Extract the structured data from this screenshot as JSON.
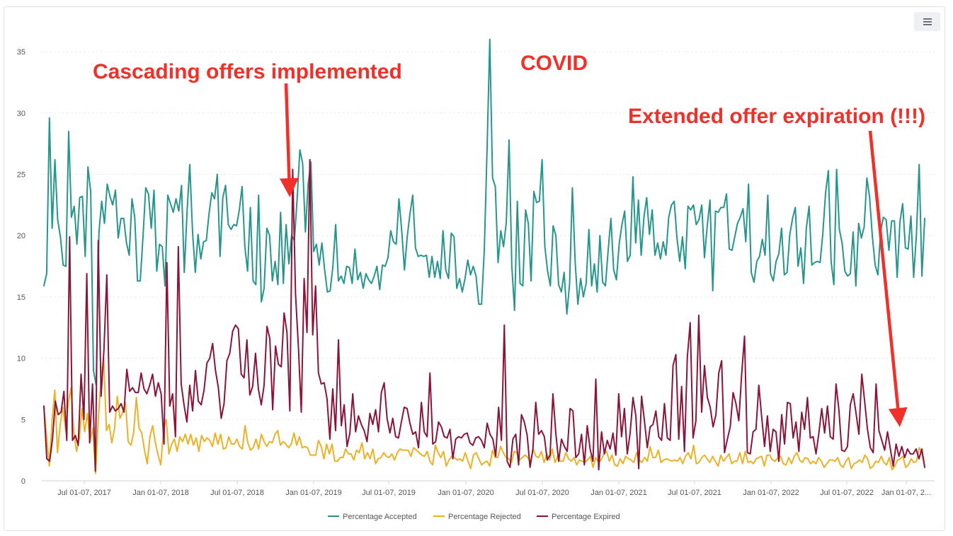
{
  "menu": {
    "icon": "hamburger-menu-icon"
  },
  "chart_data": {
    "type": "line",
    "title": "",
    "xlabel": "",
    "ylabel": "",
    "ylim": [
      0,
      37
    ],
    "y_ticks": [
      0,
      5,
      10,
      15,
      20,
      25,
      30,
      35
    ],
    "x_tick_labels": [
      "Jul 01-07, 2017",
      "Jan 01-07, 2018",
      "Jul 01-07, 2018",
      "Jan 01-07, 2019",
      "Jul 01-07, 2019",
      "Jan 01-07, 2020",
      "Jul 01-07, 2020",
      "Jan 01-07, 2021",
      "Jul 01-07, 2021",
      "Jan 01-07, 2022",
      "Jul 01-07, 2022",
      "Jan 01-07, 2..."
    ],
    "grid": true,
    "legend_position": "bottom-center",
    "series": [
      {
        "name": "Percentage Accepted",
        "color": "#26968d",
        "values": [
          15.9,
          16.9,
          29.6,
          20.6,
          26.2,
          21.3,
          19.9,
          17.6,
          17.5,
          28.5,
          21.5,
          22.4,
          19.3,
          23.1,
          23.2,
          18.3,
          25.6,
          23.6,
          9.0,
          7.8,
          20.3,
          22.8,
          21.0,
          24.2,
          23.2,
          22.5,
          23.7,
          19.8,
          21.4,
          21.4,
          19.4,
          18.4,
          23.0,
          21.5,
          16.3,
          16.3,
          19.9,
          23.9,
          23.4,
          20.6,
          23.7,
          17.1,
          19.3,
          19.1,
          15.9,
          23.3,
          22.6,
          21.9,
          23.0,
          22.0,
          24.1,
          17.0,
          21.9,
          25.8,
          20.3,
          17.0,
          20.1,
          18.1,
          19.5,
          19.6,
          21.8,
          23.5,
          23.0,
          25.0,
          18.3,
          23.1,
          24.1,
          20.9,
          20.5,
          20.9,
          20.8,
          22.1,
          24.0,
          19.1,
          17.1,
          22.3,
          16.3,
          16.0,
          23.3,
          14.6,
          15.7,
          20.6,
          20.0,
          16.3,
          17.9,
          16.0,
          21.9,
          16.1,
          20.9,
          17.7,
          20.0,
          19.6,
          23.0,
          27.0,
          25.9,
          20.3,
          24.2,
          26.0,
          18.7,
          19.3,
          17.6,
          19.4,
          17.2,
          15.4,
          15.5,
          17.5,
          20.9,
          16.3,
          16.7,
          16.1,
          17.5,
          17.4,
          16.1,
          18.9,
          16.4,
          17.0,
          15.7,
          16.9,
          16.4,
          16.1,
          16.7,
          17.5,
          15.6,
          17.6,
          17.5,
          18.2,
          20.4,
          19.5,
          19.3,
          23.0,
          20.4,
          17.2,
          19.9,
          21.8,
          23.3,
          19.0,
          18.3,
          18.4,
          18.3,
          18.4,
          16.6,
          18.3,
          16.6,
          17.9,
          16.5,
          20.4,
          17.2,
          16.5,
          20.2,
          19.9,
          15.7,
          16.5,
          15.4,
          16.5,
          18.0,
          16.8,
          17.5,
          16.7,
          14.4,
          14.4,
          18.8,
          27.0,
          36.0,
          24.7,
          24.0,
          17.8,
          20.4,
          19.1,
          21.1,
          27.8,
          17.5,
          13.9,
          22.8,
          16.1,
          15.9,
          22.1,
          21.0,
          16.3,
          23.6,
          22.7,
          22.8,
          26.2,
          19.1,
          17.1,
          15.9,
          20.8,
          20.0,
          16.0,
          15.4,
          17.0,
          13.6,
          16.1,
          23.9,
          17.9,
          14.4,
          16.5,
          15.0,
          16.1,
          20.5,
          15.9,
          17.7,
          15.4,
          20.0,
          16.2,
          15.9,
          18.8,
          21.4,
          17.2,
          16.4,
          19.3,
          20.9,
          22.0,
          17.9,
          18.4,
          24.8,
          19.4,
          22.9,
          18.4,
          21.5,
          23.1,
          20.1,
          22.1,
          18.4,
          19.4,
          18.1,
          19.5,
          18.4,
          21.5,
          22.5,
          22.8,
          19.8,
          17.9,
          19.9,
          17.3,
          22.4,
          22.1,
          22.5,
          20.9,
          21.3,
          22.5,
          18.2,
          20.8,
          22.9,
          15.5,
          22.0,
          21.9,
          22.3,
          22.3,
          23.4,
          18.9,
          18.8,
          19.9,
          21.0,
          21.5,
          22.2,
          19.5,
          24.2,
          17.0,
          16.2,
          17.9,
          18.3,
          19.7,
          18.4,
          23.3,
          16.9,
          16.3,
          17.9,
          18.5,
          20.6,
          16.8,
          17.0,
          20.1,
          21.4,
          22.3,
          17.5,
          19.0,
          16.1,
          20.6,
          22.4,
          17.6,
          17.8,
          17.9,
          17.8,
          20.2,
          23.5,
          25.3,
          17.9,
          16.0,
          25.4,
          20.5,
          19.4,
          17.1,
          16.7,
          16.9,
          20.3,
          15.9,
          21.0,
          19.8,
          20.7,
          24.7,
          23.1,
          19.9,
          17.6,
          16.8,
          20.4,
          21.5,
          21.3,
          18.8,
          21.2,
          21.2,
          16.6,
          21.1,
          22.6,
          19.0,
          18.9,
          21.6,
          16.6,
          20.1,
          25.8,
          16.7,
          21.4
        ]
      },
      {
        "name": "Percentage Rejected",
        "color": "#edb128",
        "values": [
          6.0,
          3.6,
          1.2,
          4.9,
          7.4,
          2.3,
          4.6,
          6.0,
          4.1,
          6.4,
          7.6,
          4.0,
          2.4,
          3.4,
          5.9,
          4.0,
          5.5,
          3.2,
          4.3,
          0.6,
          5.0,
          8.3,
          10.0,
          4.1,
          4.6,
          3.1,
          4.3,
          6.9,
          5.1,
          5.6,
          6.4,
          3.2,
          2.9,
          3.9,
          6.8,
          4.3,
          3.9,
          2.5,
          1.4,
          3.6,
          4.5,
          3.1,
          2.1,
          1.3,
          4.2,
          5.0,
          2.2,
          3.0,
          3.4,
          2.4,
          3.6,
          3.2,
          3.8,
          3.0,
          3.8,
          2.9,
          3.5,
          2.4,
          3.7,
          3.2,
          3.5,
          3.3,
          2.8,
          3.9,
          3.0,
          3.8,
          2.6,
          2.7,
          3.6,
          3.0,
          3.0,
          3.4,
          2.8,
          2.6,
          4.5,
          3.1,
          2.5,
          2.7,
          3.4,
          2.6,
          3.8,
          3.2,
          2.8,
          3.2,
          3.1,
          3.8,
          4.1,
          2.9,
          3.2,
          3.0,
          2.7,
          3.0,
          3.9,
          2.9,
          3.6,
          2.7,
          2.8,
          2.7,
          2.1,
          2.1,
          2.1,
          3.3,
          2.8,
          1.8,
          3.0,
          2.2,
          3.0,
          1.6,
          1.6,
          1.9,
          1.9,
          2.6,
          2.2,
          2.2,
          1.7,
          2.5,
          2.3,
          3.1,
          1.8,
          2.3,
          1.8,
          2.6,
          1.4,
          1.8,
          1.9,
          2.3,
          2.0,
          1.9,
          2.2,
          1.7,
          2.3,
          2.6,
          2.5,
          2.5,
          2.5,
          2.0,
          2.7,
          2.5,
          2.3,
          2.1,
          2.0,
          2.4,
          1.6,
          1.3,
          2.9,
          2.3,
          1.9,
          2.4,
          1.2,
          1.7,
          2.0,
          1.9,
          1.7,
          1.8,
          1.6,
          2.3,
          1.6,
          1.0,
          2.1,
          2.3,
          1.8,
          1.3,
          1.5,
          1.6,
          1.2,
          2.5,
          1.9,
          1.9,
          2.8,
          2.3,
          1.9,
          1.8,
          1.5,
          2.4,
          2.3,
          1.7,
          1.9,
          2.1,
          1.9,
          1.5,
          2.6,
          2.0,
          1.9,
          2.4,
          1.5,
          2.2,
          1.7,
          2.6,
          1.5,
          2.0,
          1.6,
          1.6,
          2.3,
          1.8,
          1.6,
          1.9,
          1.3,
          1.7,
          1.6,
          1.5,
          1.7,
          2.0,
          1.1,
          1.9,
          1.5,
          1.7,
          2.2,
          2.4,
          1.6,
          2.1,
          1.3,
          1.2,
          1.8,
          1.4,
          2.0,
          1.8,
          1.7,
          1.5,
          2.3,
          1.7,
          1.5,
          1.9,
          1.6,
          2.8,
          1.9,
          1.9,
          2.5,
          1.5,
          1.7,
          1.8,
          1.7,
          1.6,
          1.7,
          1.6,
          1.9,
          1.4,
          2.0,
          2.3,
          1.8,
          2.9,
          1.4,
          1.5,
          1.9,
          2.1,
          1.8,
          1.5,
          2.0,
          1.6,
          1.2,
          2.1,
          1.6,
          1.9,
          2.2,
          1.4,
          1.6,
          1.6,
          2.3,
          1.4,
          2.4,
          1.5,
          1.6,
          1.4,
          1.8,
          1.9,
          2.0,
          1.2,
          2.1,
          2.1,
          1.7,
          1.6,
          1.9,
          2.0,
          1.4,
          1.3,
          1.9,
          1.4,
          2.0,
          2.3,
          1.7,
          1.5,
          1.9,
          1.8,
          1.4,
          1.6,
          1.4,
          1.9,
          1.6,
          1.1,
          1.4,
          1.7,
          1.7,
          1.6,
          1.9,
          1.3,
          1.1,
          1.6,
          1.9,
          1.0,
          1.4,
          1.5,
          1.7,
          1.5,
          2.1,
          1.8,
          1.0,
          1.2,
          1.6,
          1.5,
          2.0,
          1.5,
          1.3,
          1.9,
          0.9,
          1.2,
          1.7,
          1.8,
          2.0,
          1.1,
          1.3,
          1.8,
          1.5,
          1.6,
          2.7,
          2.2,
          1.2
        ]
      },
      {
        "name": "Percentage Expired",
        "color": "#8a1538",
        "values": [
          6.1,
          1.8,
          1.6,
          3.4,
          6.5,
          5.4,
          5.6,
          7.3,
          3.3,
          19.9,
          3.3,
          3.7,
          2.9,
          8.7,
          5.0,
          16.9,
          3.1,
          7.9,
          0.8,
          19.6,
          6.9,
          10.7,
          16.8,
          5.6,
          6.1,
          5.7,
          5.9,
          6.3,
          5.6,
          9.1,
          7.3,
          7.6,
          7.2,
          7.2,
          8.8,
          7.5,
          7.1,
          7.8,
          8.7,
          6.9,
          8.0,
          7.1,
          3.0,
          17.8,
          6.1,
          7.1,
          3.6,
          19.1,
          7.9,
          6.2,
          4.8,
          7.8,
          5.7,
          9.0,
          6.5,
          6.2,
          7.4,
          9.6,
          10.0,
          11.2,
          9.0,
          7.6,
          5.1,
          6.3,
          9.8,
          10.4,
          12.2,
          12.7,
          12.4,
          8.7,
          8.4,
          11.5,
          7.0,
          7.7,
          10.4,
          7.5,
          6.2,
          7.8,
          12.6,
          11.6,
          5.8,
          11.0,
          9.5,
          9.3,
          13.7,
          12.1,
          5.7,
          25.4,
          15.2,
          10.9,
          5.6,
          16.5,
          12.1,
          26.2,
          11.9,
          15.9,
          8.8,
          7.9,
          8.0,
          6.7,
          3.4,
          7.5,
          4.1,
          11.5,
          4.5,
          6.2,
          2.8,
          3.9,
          7.1,
          4.0,
          5.3,
          4.6,
          4.1,
          3.2,
          5.5,
          4.6,
          5.8,
          4.0,
          7.2,
          8.0,
          5.1,
          3.9,
          5.1,
          3.6,
          3.5,
          4.8,
          6.0,
          5.9,
          4.7,
          3.8,
          4.0,
          2.7,
          6.4,
          4.0,
          3.6,
          8.8,
          3.0,
          3.2,
          4.8,
          4.4,
          3.6,
          3.5,
          4.2,
          1.8,
          3.4,
          3.6,
          3.5,
          3.8,
          3.9,
          3.1,
          2.9,
          3.5,
          3.6,
          3.3,
          2.7,
          4.7,
          3.8,
          3.4,
          2.0,
          6.0,
          3.3,
          12.7,
          1.6,
          1.1,
          3.4,
          3.8,
          1.3,
          5.4,
          4.8,
          3.7,
          1.1,
          2.6,
          6.4,
          3.8,
          4.1,
          3.6,
          1.7,
          2.1,
          7.1,
          3.9,
          1.6,
          3.4,
          2.8,
          2.4,
          5.9,
          5.7,
          1.9,
          2.2,
          3.8,
          1.3,
          4.5,
          2.6,
          1.6,
          8.3,
          0.9,
          4.0,
          2.2,
          3.3,
          2.6,
          3.9,
          2.1,
          7.1,
          3.6,
          5.9,
          2.2,
          3.9,
          6.8,
          5.3,
          1.0,
          6.9,
          4.9,
          2.7,
          4.4,
          4.6,
          5.7,
          3.6,
          3.3,
          6.3,
          3.5,
          3.3,
          9.4,
          10.3,
          3.4,
          7.7,
          2.4,
          10.1,
          12.9,
          3.5,
          4.9,
          13.5,
          5.6,
          9.4,
          6.8,
          6.0,
          4.4,
          5.4,
          8.8,
          9.8,
          2.3,
          3.4,
          4.4,
          7.2,
          6.3,
          4.9,
          8.7,
          11.8,
          2.3,
          2.2,
          4.0,
          4.2,
          7.8,
          5.2,
          2.8,
          5.3,
          2.4,
          4.2,
          4.0,
          1.6,
          5.4,
          3.0,
          6.4,
          6.3,
          3.5,
          4.8,
          2.4,
          5.6,
          4.2,
          6.8,
          3.5,
          3.6,
          2.2,
          3.9,
          5.9,
          3.9,
          6.1,
          3.6,
          3.4,
          7.9,
          5.8,
          2.5,
          2.4,
          2.8,
          6.2,
          7.1,
          5.5,
          3.8,
          8.7,
          6.5,
          4.2,
          2.7,
          2.3,
          7.9,
          4.1,
          3.3,
          2.5,
          4.0,
          2.6,
          1.2,
          3.0,
          2.0,
          2.8,
          1.9,
          2.6,
          2.2,
          2.2,
          2.6,
          1.8,
          2.6,
          1.1
        ]
      }
    ],
    "annotations": [
      {
        "text": "Cascading offers implemented"
      },
      {
        "text": "COVID"
      },
      {
        "text": "Extended offer expiration (!!!)"
      }
    ]
  }
}
